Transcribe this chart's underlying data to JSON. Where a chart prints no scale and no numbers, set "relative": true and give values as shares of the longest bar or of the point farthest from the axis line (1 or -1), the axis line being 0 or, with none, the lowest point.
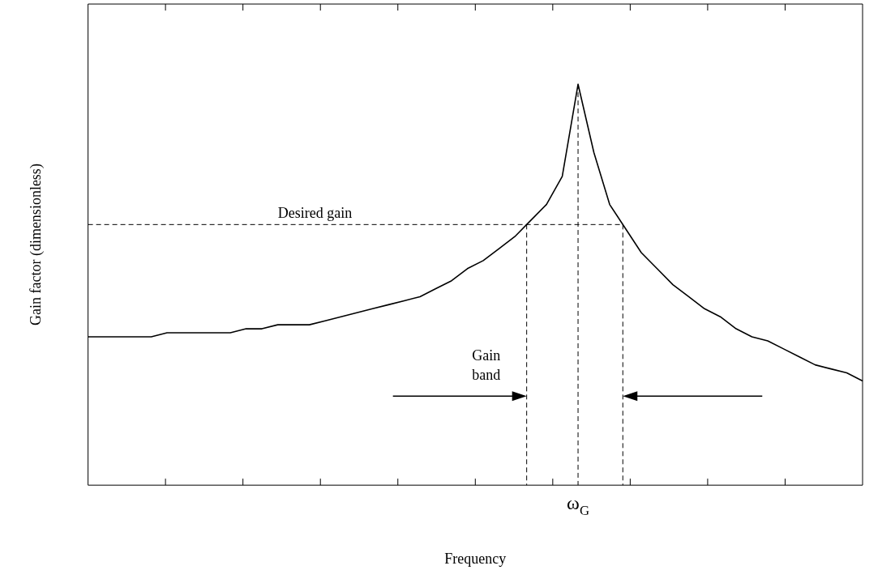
{
  "chart_data": {
    "type": "line",
    "relative": true,
    "xlabel": "Frequency",
    "ylabel": "Gain factor (dimensionless)",
    "categories": [
      null,
      null,
      null,
      null,
      null,
      null,
      null,
      null,
      null,
      null,
      null,
      null,
      null,
      null,
      null,
      null,
      null,
      null,
      null,
      null,
      null,
      null,
      null,
      null,
      null,
      null,
      null,
      null,
      null,
      null,
      null,
      null,
      null,
      null,
      null,
      null,
      null,
      null,
      null,
      null,
      null,
      null,
      null,
      null,
      null,
      null,
      null,
      null,
      null,
      null
    ],
    "series": [
      {
        "color": "#000000",
        "values": [
          0.37,
          0.37,
          0.37,
          0.37,
          0.37,
          0.38,
          0.38,
          0.38,
          0.38,
          0.38,
          0.39,
          0.39,
          0.4,
          0.4,
          0.4,
          0.41,
          0.42,
          0.43,
          0.44,
          0.45,
          0.46,
          0.47,
          0.49,
          0.51,
          0.54,
          0.56,
          0.59,
          0.62,
          0.66,
          0.7,
          0.77,
          1,
          0.83,
          0.7,
          0.64,
          0.58,
          0.54,
          0.5,
          0.47,
          0.44,
          0.42,
          0.39,
          0.37,
          0.36,
          0.34,
          0.32,
          0.3,
          0.29,
          0.28,
          0.26
        ]
      }
    ],
    "ref_lines": [
      {
        "axis": "y",
        "value": 0.65,
        "label": "Desired gain",
        "line_style": "dashed",
        "color": "#000000"
      }
    ],
    "annotations": [
      "Gain band",
      "ω$_{G}$"
    ],
    "grid": false,
    "legend": false,
    "marker": "none",
    "line_style": "solid"
  }
}
